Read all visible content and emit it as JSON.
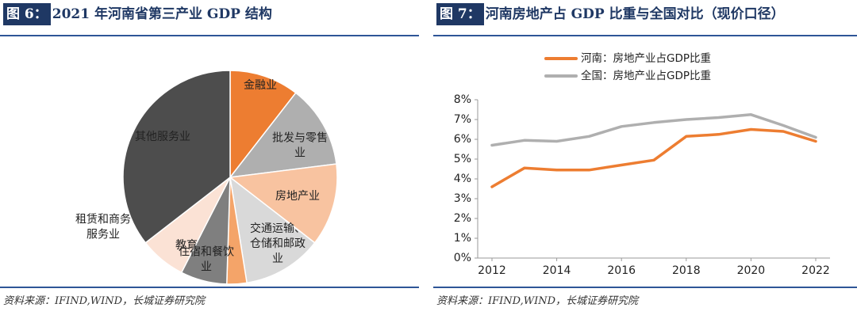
{
  "colors": {
    "accent": "#1f3864",
    "rule": "#2e5597",
    "henan": "#ed7d31",
    "national": "#afafaf"
  },
  "left": {
    "fig_label": "图 6：",
    "fig_text": "2021 年河南省第三产业 GDP 结构",
    "source": "资料来源：IFIND,WIND，长城证券研究院"
  },
  "right": {
    "fig_label": "图 7：",
    "fig_text": "河南房地产占 GDP 比重与全国对比（现价口径）",
    "source": "资料来源：IFIND,WIND，长城证券研究院"
  },
  "chart_data": [
    {
      "type": "pie",
      "title": "2021 年河南省第三产业 GDP 结构",
      "slices": [
        {
          "label_lines": [
            "金融业"
          ],
          "value": 10.5,
          "color": "#ed7d31"
        },
        {
          "label_lines": [
            "批发与零售",
            "业"
          ],
          "value": 12.5,
          "color": "#afafaf"
        },
        {
          "label_lines": [
            "房地产业"
          ],
          "value": 12.5,
          "color": "#f8c3a0"
        },
        {
          "label_lines": [
            "交通运输、",
            "仓储和邮政",
            "业"
          ],
          "value": 12.0,
          "color": "#d9d9d9"
        },
        {
          "label_lines": [
            "住宿和餐饮",
            "业"
          ],
          "value": 3.0,
          "color": "#f4a469"
        },
        {
          "label_lines": [
            "教育"
          ],
          "value": 7.0,
          "color": "#7f7f7f"
        },
        {
          "label_lines": [
            "租赁和商务",
            "服务业"
          ],
          "value": 7.0,
          "color": "#fbe2d5"
        },
        {
          "label_lines": [
            "其他服务业"
          ],
          "value": 35.5,
          "color": "#4d4d4d"
        }
      ]
    },
    {
      "type": "line",
      "title": "河南房地产占 GDP 比重与全国对比（现价口径）",
      "x": [
        2012,
        2013,
        2014,
        2015,
        2016,
        2017,
        2018,
        2019,
        2020,
        2021,
        2022
      ],
      "x_ticks": [
        "2012",
        "2014",
        "2016",
        "2018",
        "2020",
        "2022"
      ],
      "y_ticks": [
        "0%",
        "1%",
        "2%",
        "3%",
        "4%",
        "5%",
        "6%",
        "7%",
        "8%"
      ],
      "ylim": [
        0,
        8
      ],
      "legend_position": "top-left",
      "series": [
        {
          "name": "河南：房地产业占GDP比重",
          "color": "#ed7d31",
          "values": [
            3.6,
            4.55,
            4.45,
            4.45,
            4.7,
            4.95,
            6.15,
            6.25,
            6.5,
            6.4,
            5.9
          ]
        },
        {
          "name": "全国：房地产业占GDP比重",
          "color": "#afafaf",
          "values": [
            5.7,
            5.95,
            5.9,
            6.15,
            6.65,
            6.85,
            7.0,
            7.1,
            7.25,
            6.7,
            6.1
          ]
        }
      ]
    }
  ]
}
